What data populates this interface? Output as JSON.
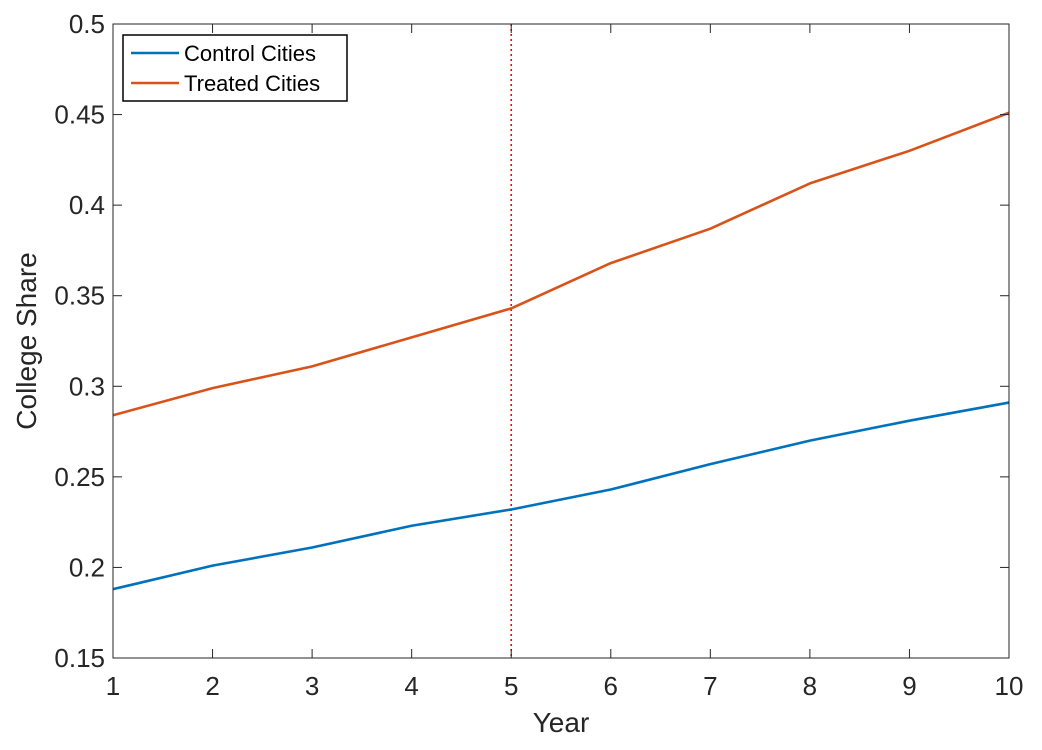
{
  "chart_data": {
    "type": "line",
    "title": "",
    "xlabel": "Year",
    "ylabel": "College Share",
    "xlim": [
      1,
      10
    ],
    "ylim": [
      0.15,
      0.5
    ],
    "xticks": [
      1,
      2,
      3,
      4,
      5,
      6,
      7,
      8,
      9,
      10
    ],
    "xtick_labels": [
      "1",
      "2",
      "3",
      "4",
      "5",
      "6",
      "7",
      "8",
      "9",
      "10"
    ],
    "yticks": [
      0.15,
      0.2,
      0.25,
      0.3,
      0.35,
      0.4,
      0.45,
      0.5
    ],
    "ytick_labels": [
      "0.15",
      "0.2",
      "0.25",
      "0.3",
      "0.35",
      "0.4",
      "0.45",
      "0.5"
    ],
    "grid": false,
    "legend_position": "top-left",
    "x": [
      1,
      2,
      3,
      4,
      5,
      6,
      7,
      8,
      9,
      10
    ],
    "series": [
      {
        "name": "Control Cities",
        "color": "#0072BD",
        "values": [
          0.188,
          0.201,
          0.211,
          0.223,
          0.232,
          0.243,
          0.257,
          0.27,
          0.281,
          0.291
        ]
      },
      {
        "name": "Treated Cities",
        "color": "#D95319",
        "values": [
          0.284,
          0.299,
          0.311,
          0.327,
          0.343,
          0.368,
          0.387,
          0.412,
          0.43,
          0.451
        ]
      }
    ],
    "reference_line": {
      "x": 5,
      "color": "#FF0000",
      "style": "dotted"
    }
  }
}
